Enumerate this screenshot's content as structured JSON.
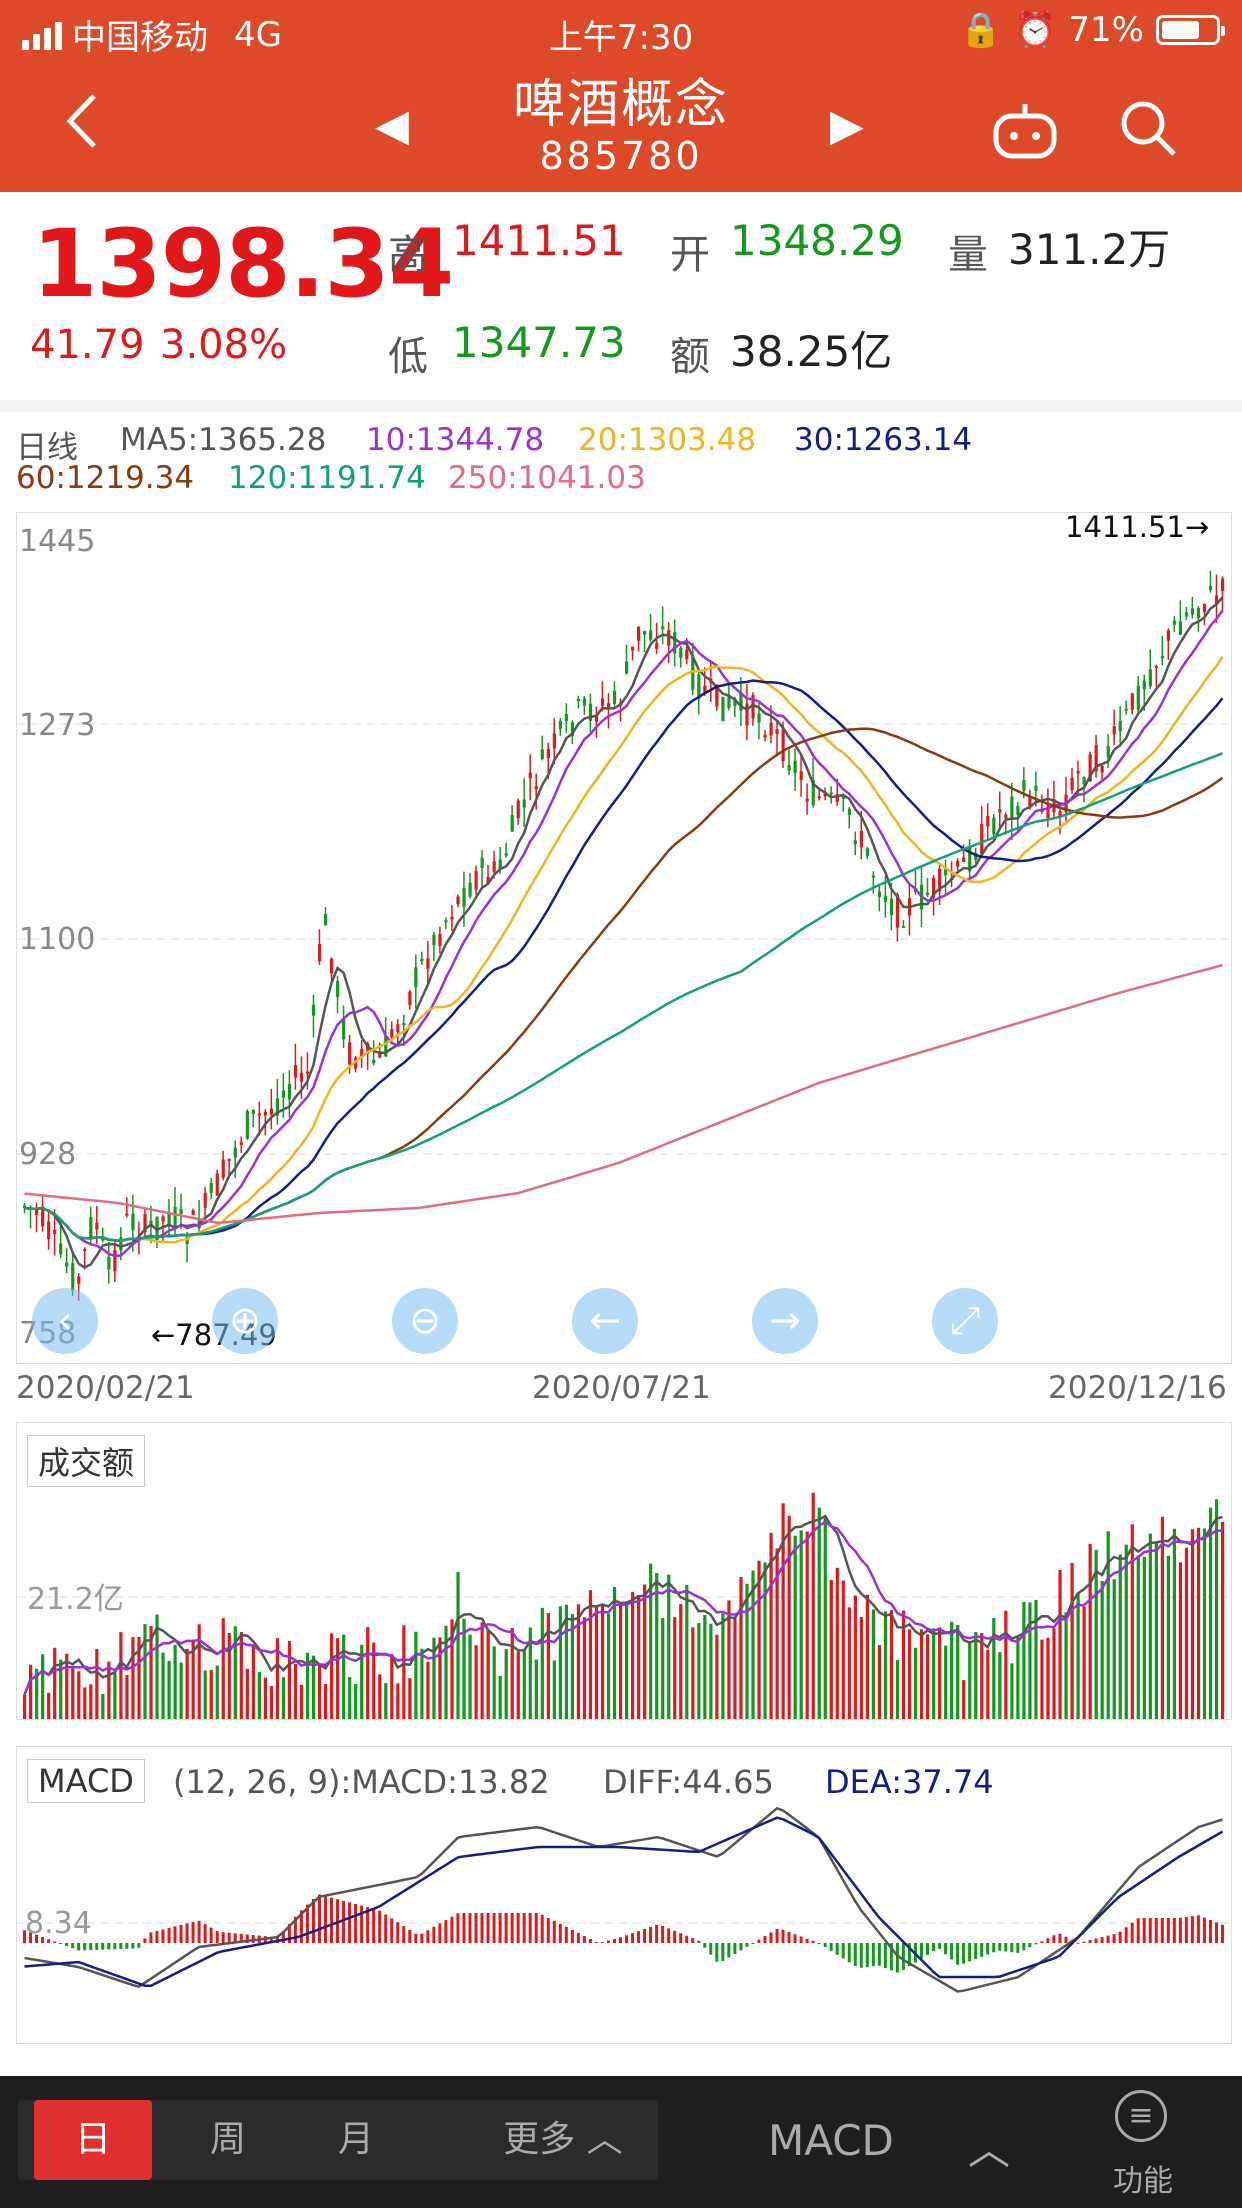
{
  "status_bar": {
    "carrier": "中国移动",
    "network": "4G",
    "time": "上午7:30",
    "battery": "71%",
    "battery_level": 0.71
  },
  "header": {
    "title": "啤酒概念",
    "code": "885780"
  },
  "quote": {
    "price": "1398.34",
    "change": "41.79",
    "change_pct": "3.08%",
    "high_label": "高",
    "high": "1411.51",
    "open_label": "开",
    "open": "1348.29",
    "volume_label": "量",
    "volume": "311.2万",
    "low_label": "低",
    "low": "1347.73",
    "amount_label": "额",
    "amount": "38.25亿"
  },
  "ma": {
    "period": "日线",
    "ma5": "MA5:1365.28",
    "ma10": "10:1344.78",
    "ma20": "20:1303.48",
    "ma30": "30:1263.14",
    "ma60": "60:1219.34",
    "ma120": "120:1191.74",
    "ma250": "250:1041.03",
    "colors": {
      "ma5": "#555555",
      "ma10": "#9b30d9",
      "ma20": "#f0b41e",
      "ma30": "#141c8a",
      "ma60": "#8a3a0e",
      "ma120": "#12a079",
      "ma250": "#e06b82"
    }
  },
  "kline": {
    "y_labels": [
      "1445",
      "1273",
      "1100",
      "928",
      "758"
    ],
    "max_label": "1411.51→",
    "min_label": "←787.49",
    "dates": [
      "2020/02/21",
      "2020/07/21",
      "2020/12/16"
    ]
  },
  "tools": [
    {
      "name": "pan-left-icon",
      "glyph": "‹"
    },
    {
      "name": "zoom-in-icon",
      "glyph": "⊕"
    },
    {
      "name": "zoom-out-icon",
      "glyph": "⊖"
    },
    {
      "name": "arrow-left-icon",
      "glyph": "←"
    },
    {
      "name": "arrow-right-icon",
      "glyph": "→"
    },
    {
      "name": "expand-icon",
      "glyph": "⤢"
    }
  ],
  "volume_panel": {
    "tag": "成交额",
    "level_label": "21.2亿"
  },
  "macd_panel": {
    "tag": "MACD",
    "params": "(12, 26, 9):MACD:13.82",
    "diff": "DIFF:44.65",
    "dea": "DEA:37.74",
    "level_label": "8.34"
  },
  "bottom_bar": {
    "tabs": [
      "日",
      "周",
      "月"
    ],
    "more": "更多",
    "indicator": "MACD",
    "function_label": "功能"
  },
  "colors": {
    "header_bg": "#dd4a2a",
    "up": "#e0181a",
    "down": "#12981c"
  }
}
